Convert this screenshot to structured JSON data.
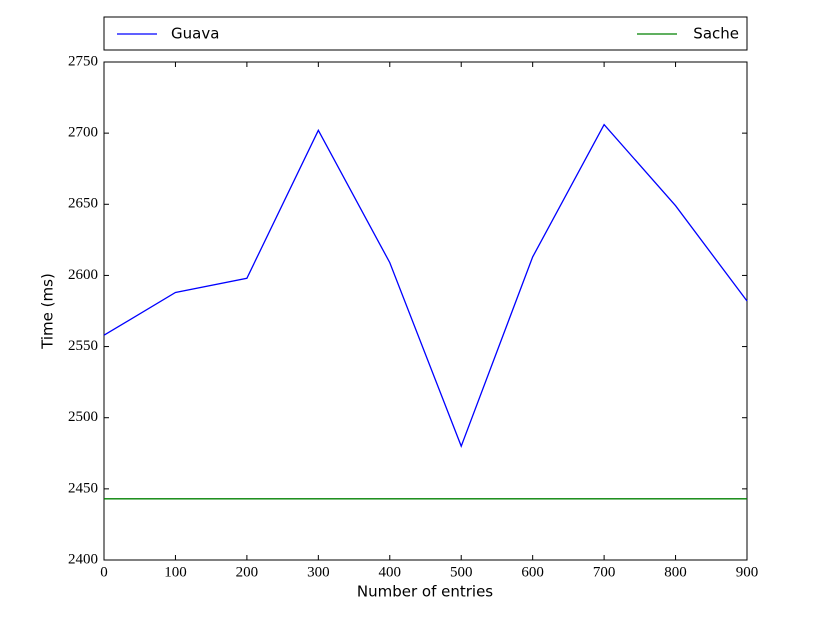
{
  "chart_data": {
    "type": "line",
    "xlabel": "Number of entries",
    "ylabel": "Time (ms)",
    "x": [
      0,
      100,
      200,
      300,
      400,
      500,
      600,
      700,
      800,
      900
    ],
    "series": [
      {
        "name": "Guava",
        "color": "#0000ff",
        "values": [
          2558,
          2588,
          2598,
          2702,
          2609,
          2480,
          2613,
          2706,
          2649,
          2582
        ]
      },
      {
        "name": "Sache",
        "color": "#008000",
        "values": [
          2443,
          2443,
          2443,
          2443,
          2443,
          2443,
          2443,
          2443,
          2443,
          2443
        ]
      }
    ],
    "xlim": [
      0,
      900
    ],
    "xticks": [
      0,
      100,
      200,
      300,
      400,
      500,
      600,
      700,
      800,
      900
    ],
    "ylim": [
      2400,
      2750
    ],
    "yticks": [
      2400,
      2450,
      2500,
      2550,
      2600,
      2650,
      2700,
      2750
    ],
    "legend": "above"
  }
}
